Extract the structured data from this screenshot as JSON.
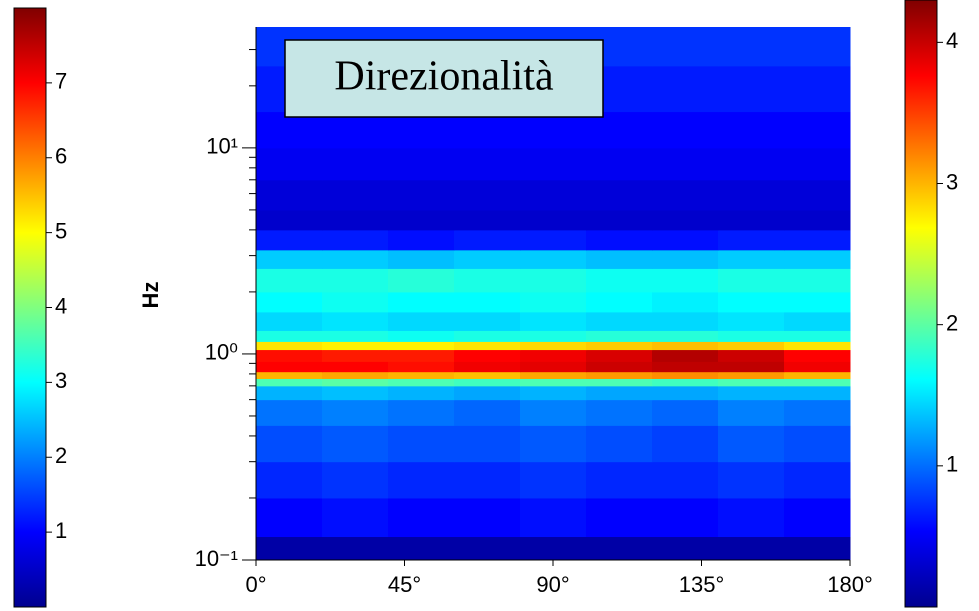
{
  "chart_data": {
    "type": "heatmap",
    "title": "Direzionalità",
    "ylabel": "Hz",
    "yscale": "log",
    "colormap": "jet",
    "x_bins": [
      0,
      20,
      40,
      60,
      80,
      100,
      120,
      140,
      160,
      180
    ],
    "y_bins": [
      0.1,
      0.13,
      0.2,
      0.3,
      0.45,
      0.6,
      0.7,
      0.76,
      0.82,
      0.92,
      1.05,
      1.15,
      1.3,
      1.6,
      2.0,
      2.6,
      3.2,
      4.0,
      5.0,
      7.0,
      10,
      15,
      25,
      38.6
    ],
    "values": [
      [
        0.3,
        0.3,
        0.3,
        0.3,
        0.3,
        0.3,
        0.3,
        0.3,
        0.3
      ],
      [
        1.0,
        1.1,
        1.0,
        1.0,
        1.1,
        1.0,
        1.0,
        1.1,
        1.0
      ],
      [
        1.3,
        1.4,
        1.3,
        1.3,
        1.4,
        1.3,
        1.3,
        1.4,
        1.3
      ],
      [
        1.6,
        1.7,
        1.6,
        1.6,
        1.7,
        1.6,
        1.5,
        1.7,
        1.6
      ],
      [
        1.9,
        2.0,
        1.9,
        1.8,
        2.0,
        1.9,
        1.8,
        2.0,
        1.9
      ],
      [
        2.4,
        2.5,
        2.4,
        2.3,
        2.4,
        2.3,
        2.3,
        2.4,
        2.4
      ],
      [
        3.6,
        3.7,
        3.6,
        3.5,
        3.6,
        3.6,
        3.5,
        3.6,
        3.6
      ],
      [
        5.6,
        5.7,
        5.6,
        5.5,
        5.7,
        5.8,
        5.9,
        5.8,
        5.6
      ],
      [
        7.0,
        7.0,
        6.9,
        7.1,
        7.2,
        7.4,
        7.5,
        7.5,
        7.1
      ],
      [
        6.9,
        6.8,
        6.8,
        7.0,
        7.1,
        7.3,
        7.6,
        7.4,
        7.0
      ],
      [
        5.2,
        5.1,
        5.1,
        5.2,
        5.3,
        5.4,
        5.5,
        5.4,
        5.2
      ],
      [
        3.2,
        3.2,
        3.1,
        3.2,
        3.2,
        3.3,
        3.3,
        3.2,
        3.2
      ],
      [
        2.7,
        2.8,
        2.7,
        2.7,
        2.8,
        2.7,
        2.7,
        2.8,
        2.7
      ],
      [
        3.0,
        3.1,
        3.0,
        3.0,
        3.1,
        3.0,
        2.9,
        3.0,
        3.0
      ],
      [
        3.2,
        3.2,
        3.3,
        3.2,
        3.2,
        3.1,
        3.1,
        3.2,
        3.2
      ],
      [
        2.6,
        2.6,
        2.5,
        2.6,
        2.6,
        2.5,
        2.5,
        2.6,
        2.6
      ],
      [
        1.2,
        1.2,
        1.1,
        1.2,
        1.2,
        1.1,
        1.1,
        1.2,
        1.2
      ],
      [
        0.6,
        0.6,
        0.6,
        0.6,
        0.6,
        0.6,
        0.6,
        0.6,
        0.6
      ],
      [
        0.7,
        0.7,
        0.7,
        0.7,
        0.7,
        0.7,
        0.7,
        0.7,
        0.7
      ],
      [
        0.9,
        0.9,
        0.9,
        0.9,
        0.9,
        0.9,
        0.9,
        0.9,
        0.9
      ],
      [
        1.0,
        1.0,
        1.0,
        1.0,
        1.0,
        1.0,
        1.0,
        1.0,
        1.0
      ],
      [
        1.2,
        1.2,
        1.2,
        1.2,
        1.2,
        1.2,
        1.2,
        1.2,
        1.2
      ],
      [
        1.4,
        1.4,
        1.4,
        1.4,
        1.4,
        1.4,
        1.4,
        1.4,
        1.4
      ]
    ],
    "xlim": [
      0,
      180
    ],
    "xticks": [
      {
        "value": 0,
        "label": "0°"
      },
      {
        "value": 45,
        "label": "45°"
      },
      {
        "value": 90,
        "label": "90°"
      },
      {
        "value": 135,
        "label": "135°"
      },
      {
        "value": 180,
        "label": "180°"
      }
    ],
    "ylim": [
      0.1,
      38.6
    ],
    "yticks": [
      {
        "value": 0.1,
        "label": "10⁻¹"
      },
      {
        "value": 1,
        "label": "10⁰"
      },
      {
        "value": 10,
        "label": "10¹"
      }
    ],
    "yminor_ticks": [
      0.2,
      0.3,
      0.4,
      0.5,
      0.6,
      0.7,
      0.8,
      0.9,
      2,
      3,
      4,
      5,
      6,
      7,
      8,
      9,
      20,
      30
    ],
    "colorbar": {
      "zlim": [
        0,
        8
      ],
      "ticks": [
        1,
        2,
        3,
        4,
        5,
        6,
        7
      ]
    },
    "colorbar2": {
      "zlim": [
        0,
        4.3
      ],
      "ticks": [
        1,
        2,
        3,
        4
      ]
    }
  }
}
